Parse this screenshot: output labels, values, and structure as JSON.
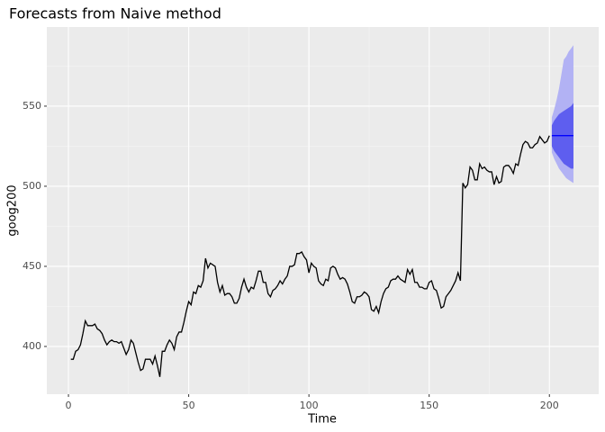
{
  "chart_data": {
    "type": "forecast",
    "title": "Forecasts from Naive method",
    "x_label": "Time",
    "y_label": "goog200",
    "xlim": [
      -9,
      220.5
    ],
    "ylim": [
      370.2,
      599.4
    ],
    "xticks": [
      0,
      50,
      100,
      150,
      200
    ],
    "yticks": [
      400,
      450,
      500,
      550
    ],
    "x_minor_ticks": [
      25,
      75,
      125,
      175
    ],
    "y_minor_ticks": [
      425,
      475,
      525,
      575
    ],
    "grid": true,
    "series": [
      {
        "color": "#000000",
        "x": [
          1,
          2,
          3,
          4,
          5,
          6,
          7,
          8,
          9,
          10,
          11,
          12,
          13,
          14,
          15,
          16,
          17,
          18,
          19,
          20,
          21,
          22,
          23,
          24,
          25,
          26,
          27,
          28,
          29,
          30,
          31,
          32,
          33,
          34,
          35,
          36,
          37,
          38,
          39,
          40,
          41,
          42,
          43,
          44,
          45,
          46,
          47,
          48,
          49,
          50,
          51,
          52,
          53,
          54,
          55,
          56,
          57,
          58,
          59,
          60,
          61,
          62,
          63,
          64,
          65,
          66,
          67,
          68,
          69,
          70,
          71,
          72,
          73,
          74,
          75,
          76,
          77,
          78,
          79,
          80,
          81,
          82,
          83,
          84,
          85,
          86,
          87,
          88,
          89,
          90,
          91,
          92,
          93,
          94,
          95,
          96,
          97,
          98,
          99,
          100,
          101,
          102,
          103,
          104,
          105,
          106,
          107,
          108,
          109,
          110,
          111,
          112,
          113,
          114,
          115,
          116,
          117,
          118,
          119,
          120,
          121,
          122,
          123,
          124,
          125,
          126,
          127,
          128,
          129,
          130,
          131,
          132,
          133,
          134,
          135,
          136,
          137,
          138,
          139,
          140,
          141,
          142,
          143,
          144,
          145,
          146,
          147,
          148,
          149,
          150,
          151,
          152,
          153,
          154,
          155,
          156,
          157,
          158,
          159,
          160,
          161,
          162,
          163,
          164,
          165,
          166,
          167,
          168,
          169,
          170,
          171,
          172,
          173,
          174,
          175,
          176,
          177,
          178,
          179,
          180,
          181,
          182,
          183,
          184,
          185,
          186,
          187,
          188,
          189,
          190,
          191,
          192,
          193,
          194,
          195,
          196,
          197,
          198,
          199,
          200
        ],
        "values": [
          392,
          392,
          397,
          398,
          401,
          408,
          416,
          413,
          413,
          413,
          414,
          411,
          410,
          408,
          404,
          401,
          403,
          404,
          403,
          403,
          402,
          403,
          399,
          395,
          398,
          404,
          402,
          396,
          390,
          385,
          386,
          392,
          392,
          392,
          389,
          394,
          388,
          381,
          397,
          397,
          401,
          404,
          402,
          398,
          406,
          409,
          409,
          415,
          422,
          428,
          426,
          434,
          433,
          438,
          437,
          441,
          455,
          449,
          452,
          451,
          450,
          440,
          434,
          438,
          432,
          433,
          433,
          431,
          427,
          427,
          430,
          437,
          442,
          437,
          434,
          437,
          436,
          441,
          447,
          447,
          440,
          440,
          433,
          431,
          435,
          436,
          438,
          441,
          439,
          442,
          444,
          450,
          450,
          451,
          458,
          458,
          459,
          456,
          454,
          446,
          452,
          450,
          449,
          441,
          439,
          438,
          442,
          441,
          449,
          450,
          449,
          445,
          442,
          443,
          442,
          439,
          434,
          428,
          427,
          431,
          431,
          432,
          434,
          433,
          431,
          423,
          422,
          425,
          421,
          428,
          433,
          436,
          437,
          441,
          442,
          442,
          444,
          442,
          441,
          440,
          448,
          445,
          448,
          440,
          440,
          437,
          437,
          436,
          436,
          440,
          441,
          436,
          435,
          430,
          424,
          425,
          431,
          433,
          435,
          438,
          441,
          446,
          441,
          502,
          499,
          501,
          512,
          510,
          504,
          504,
          514,
          511,
          512,
          510,
          509,
          509,
          501,
          506,
          502,
          503,
          512,
          513,
          513,
          511,
          508,
          514,
          513,
          520,
          526,
          528,
          527,
          524,
          524,
          526,
          527,
          531,
          529,
          527,
          528,
          531.6
        ]
      }
    ],
    "forecast": {
      "x": [
        201,
        202,
        203,
        204,
        205,
        206,
        207,
        208,
        209,
        210
      ],
      "mean": [
        531.6,
        531.6,
        531.6,
        531.6,
        531.6,
        531.6,
        531.6,
        531.6,
        531.6,
        531.6
      ],
      "mean_color": "#0000ff",
      "lower_80": [
        525,
        522,
        520,
        518,
        516,
        514,
        513,
        512,
        511,
        511
      ],
      "upper_80": [
        538,
        541,
        543,
        545,
        546,
        547,
        548,
        549,
        550,
        552
      ],
      "color_80": "#5e5eef",
      "lower_95": [
        521,
        517,
        514,
        511,
        509,
        507,
        505,
        504,
        503,
        502
      ],
      "upper_95": [
        543,
        548,
        554,
        561,
        570,
        579,
        581,
        584,
        586,
        588
      ],
      "color_95": "#b2b2f4"
    }
  }
}
